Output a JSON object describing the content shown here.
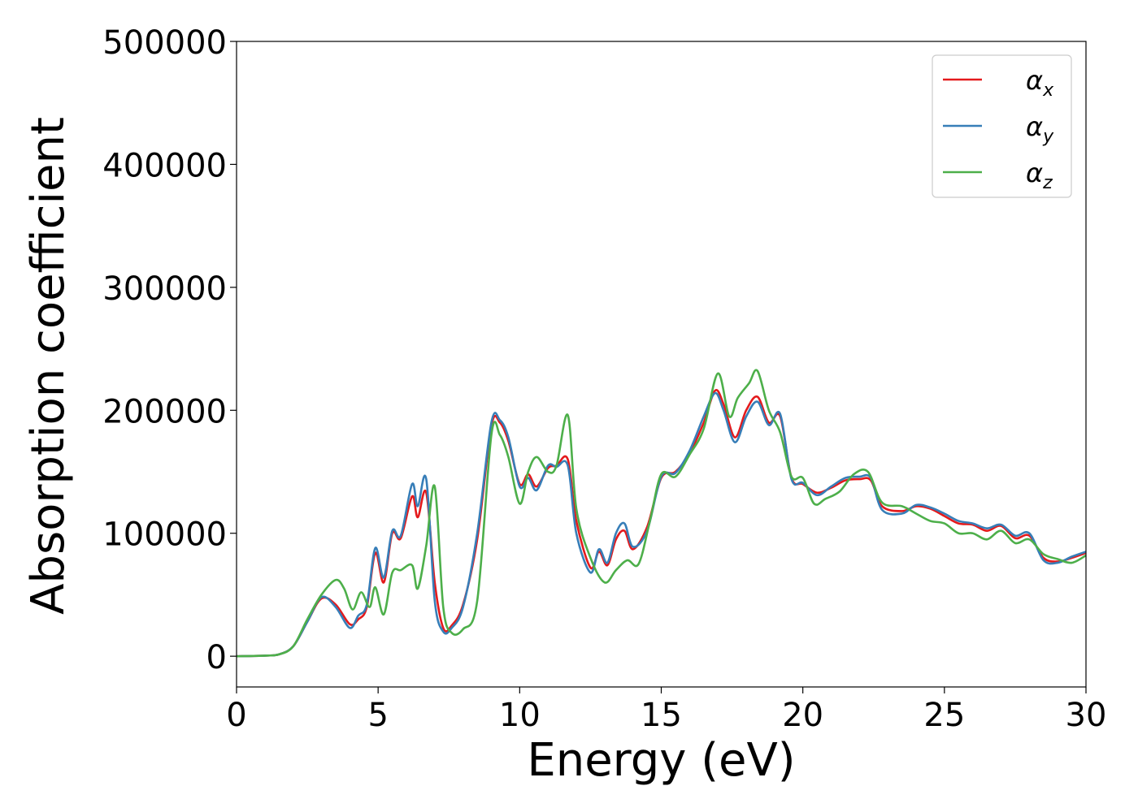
{
  "chart_data": {
    "type": "line",
    "title": "",
    "xlabel": "Energy (eV)",
    "ylabel": "Absorption coefficient",
    "xlim": [
      0,
      30
    ],
    "ylim": [
      -25000,
      500000
    ],
    "xticks": [
      0,
      5,
      10,
      15,
      20,
      25,
      30
    ],
    "xtick_labels": [
      "0",
      "5",
      "10",
      "15",
      "20",
      "25",
      "30"
    ],
    "yticks": [
      0,
      100000,
      200000,
      300000,
      400000,
      500000
    ],
    "ytick_labels": [
      "0",
      "100000",
      "200000",
      "300000",
      "400000",
      "500000"
    ],
    "grid": false,
    "legend_position": "top-right",
    "series": [
      {
        "name": "α",
        "subscript": "x",
        "color": "#e41a1c",
        "x": [
          0,
          1,
          1.5,
          2,
          2.5,
          3,
          3.5,
          4,
          4.3,
          4.6,
          4.9,
          5.2,
          5.5,
          5.8,
          6.2,
          6.4,
          6.7,
          7.0,
          7.3,
          7.6,
          8,
          8.5,
          9.0,
          9.3,
          9.6,
          10,
          10.3,
          10.6,
          11,
          11.3,
          11.7,
          12.0,
          12.5,
          12.8,
          13.1,
          13.4,
          13.7,
          14.0,
          14.5,
          15,
          15.5,
          16,
          16.5,
          16.9,
          17.2,
          17.6,
          18,
          18.4,
          18.8,
          19.2,
          19.6,
          20,
          20.5,
          21,
          21.5,
          22,
          22.4,
          22.8,
          23.5,
          24,
          24.5,
          25,
          25.5,
          26,
          26.5,
          27,
          27.5,
          28,
          28.5,
          29,
          29.5,
          30
        ],
        "y": [
          0,
          500,
          1500,
          8000,
          28000,
          47000,
          42000,
          26000,
          30000,
          40000,
          84000,
          60000,
          100000,
          96000,
          130000,
          113000,
          133000,
          60000,
          23000,
          25000,
          42000,
          95000,
          187000,
          190000,
          175000,
          140000,
          148000,
          138000,
          153000,
          155000,
          160000,
          110000,
          72000,
          85000,
          74000,
          95000,
          102000,
          87000,
          105000,
          145000,
          150000,
          165000,
          190000,
          216000,
          205000,
          178000,
          200000,
          211000,
          190000,
          195000,
          145000,
          140000,
          133000,
          137000,
          143000,
          144000,
          143000,
          122000,
          118000,
          122000,
          120000,
          114000,
          108000,
          107000,
          102000,
          106000,
          96000,
          98000,
          80000,
          77000,
          80000,
          84000
        ]
      },
      {
        "name": "α",
        "subscript": "y",
        "color": "#377eb8",
        "x": [
          0,
          1,
          1.5,
          2,
          2.5,
          3,
          3.5,
          4,
          4.3,
          4.6,
          4.9,
          5.2,
          5.5,
          5.8,
          6.2,
          6.4,
          6.7,
          7.0,
          7.3,
          7.6,
          8,
          8.5,
          9.0,
          9.3,
          9.6,
          10,
          10.3,
          10.6,
          11,
          11.3,
          11.7,
          12.0,
          12.5,
          12.8,
          13.1,
          13.4,
          13.7,
          14.0,
          14.5,
          15,
          15.5,
          16,
          16.5,
          16.9,
          17.2,
          17.6,
          18,
          18.4,
          18.8,
          19.2,
          19.6,
          20,
          20.5,
          21,
          21.5,
          22,
          22.4,
          22.8,
          23.5,
          24,
          24.5,
          25,
          25.5,
          26,
          26.5,
          27,
          27.5,
          28,
          28.5,
          29,
          29.5,
          30
        ],
        "y": [
          0,
          500,
          1500,
          8000,
          28000,
          48000,
          40000,
          23000,
          33000,
          42000,
          88000,
          64000,
          102000,
          98000,
          140000,
          122000,
          144000,
          45000,
          20000,
          23000,
          40000,
          100000,
          190000,
          192000,
          178000,
          138000,
          145000,
          135000,
          155000,
          154000,
          155000,
          100000,
          68000,
          87000,
          76000,
          100000,
          108000,
          89000,
          102000,
          146000,
          149000,
          167000,
          195000,
          214000,
          200000,
          174000,
          195000,
          207000,
          188000,
          197000,
          144000,
          141000,
          131000,
          138000,
          145000,
          146000,
          145000,
          119000,
          116000,
          123000,
          121000,
          116000,
          110000,
          108000,
          104000,
          107000,
          98000,
          100000,
          78000,
          76000,
          81000,
          85000
        ]
      },
      {
        "name": "α",
        "subscript": "z",
        "color": "#4daf4a",
        "x": [
          0,
          1,
          1.5,
          2,
          2.5,
          3,
          3.5,
          3.8,
          4.1,
          4.4,
          4.7,
          4.9,
          5.2,
          5.5,
          5.8,
          6.2,
          6.4,
          6.7,
          7.0,
          7.3,
          7.6,
          8,
          8.5,
          9.0,
          9.3,
          9.6,
          10,
          10.3,
          10.6,
          11,
          11.3,
          11.7,
          12.0,
          12.5,
          13,
          13.4,
          13.8,
          14.2,
          14.6,
          15,
          15.5,
          16,
          16.5,
          17.0,
          17.4,
          17.7,
          18.1,
          18.4,
          18.8,
          19.2,
          19.6,
          20,
          20.4,
          20.8,
          21.3,
          21.8,
          22.3,
          22.8,
          23.5,
          24,
          24.5,
          25,
          25.5,
          26,
          26.5,
          27,
          27.5,
          28,
          28.5,
          29,
          29.5,
          30
        ],
        "y": [
          0,
          500,
          1500,
          8000,
          30000,
          50000,
          62000,
          55000,
          38000,
          52000,
          40000,
          56000,
          34000,
          68000,
          70000,
          74000,
          55000,
          90000,
          138000,
          40000,
          19000,
          22000,
          45000,
          180000,
          180000,
          162000,
          124000,
          150000,
          162000,
          150000,
          155000,
          196000,
          120000,
          80000,
          60000,
          70000,
          78000,
          75000,
          110000,
          148000,
          146000,
          164000,
          185000,
          230000,
          195000,
          210000,
          222000,
          232000,
          200000,
          182000,
          146000,
          145000,
          124000,
          128000,
          134000,
          148000,
          150000,
          125000,
          122000,
          116000,
          110000,
          108000,
          100000,
          100000,
          95000,
          102000,
          92000,
          95000,
          83000,
          79000,
          76000,
          82000
        ]
      }
    ]
  }
}
